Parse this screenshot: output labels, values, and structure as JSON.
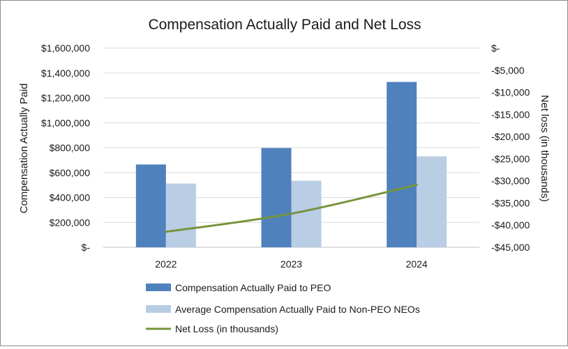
{
  "chart_data": {
    "type": "bar+line",
    "title": "Compensation Actually Paid and Net Loss",
    "categories": [
      "2022",
      "2023",
      "2024"
    ],
    "left_axis": {
      "label": "Compensation Actually Paid",
      "range": [
        0,
        1600000
      ],
      "ticks": [
        0,
        200000,
        400000,
        600000,
        800000,
        1000000,
        1200000,
        1400000,
        1600000
      ],
      "tick_labels": [
        "$-",
        "$200,000",
        "$400,000",
        "$600,000",
        "$800,000",
        "$1,000,000",
        "$1,200,000",
        "$1,400,000",
        "$1,600,000"
      ]
    },
    "right_axis": {
      "label": "Net loss (in thousands)",
      "range": [
        -45000,
        0
      ],
      "ticks": [
        0,
        -5000,
        -10000,
        -15000,
        -20000,
        -25000,
        -30000,
        -35000,
        -40000,
        -45000
      ],
      "tick_labels": [
        "$-",
        "-$5,000",
        "-$10,000",
        "-$15,000",
        "-$20,000",
        "-$25,000",
        "-$30,000",
        "-$35,000",
        "-$40,000",
        "-$45,000"
      ]
    },
    "series": [
      {
        "name": "Compensation Actually Paid to PEO",
        "kind": "bar",
        "axis": "left",
        "color": "#4f81bd",
        "values": [
          665000,
          797000,
          1328000
        ]
      },
      {
        "name": "Average Compensation Actually Paid to Non-PEO NEOs",
        "kind": "bar",
        "axis": "left",
        "color": "#b9cde5",
        "values": [
          512000,
          534000,
          730000
        ]
      },
      {
        "name": "Net Loss (in thousands)",
        "kind": "line",
        "axis": "right",
        "color": "#77933c",
        "values": [
          -41500,
          -37400,
          -30900
        ]
      }
    ],
    "grid": true,
    "legend": "bottom"
  }
}
